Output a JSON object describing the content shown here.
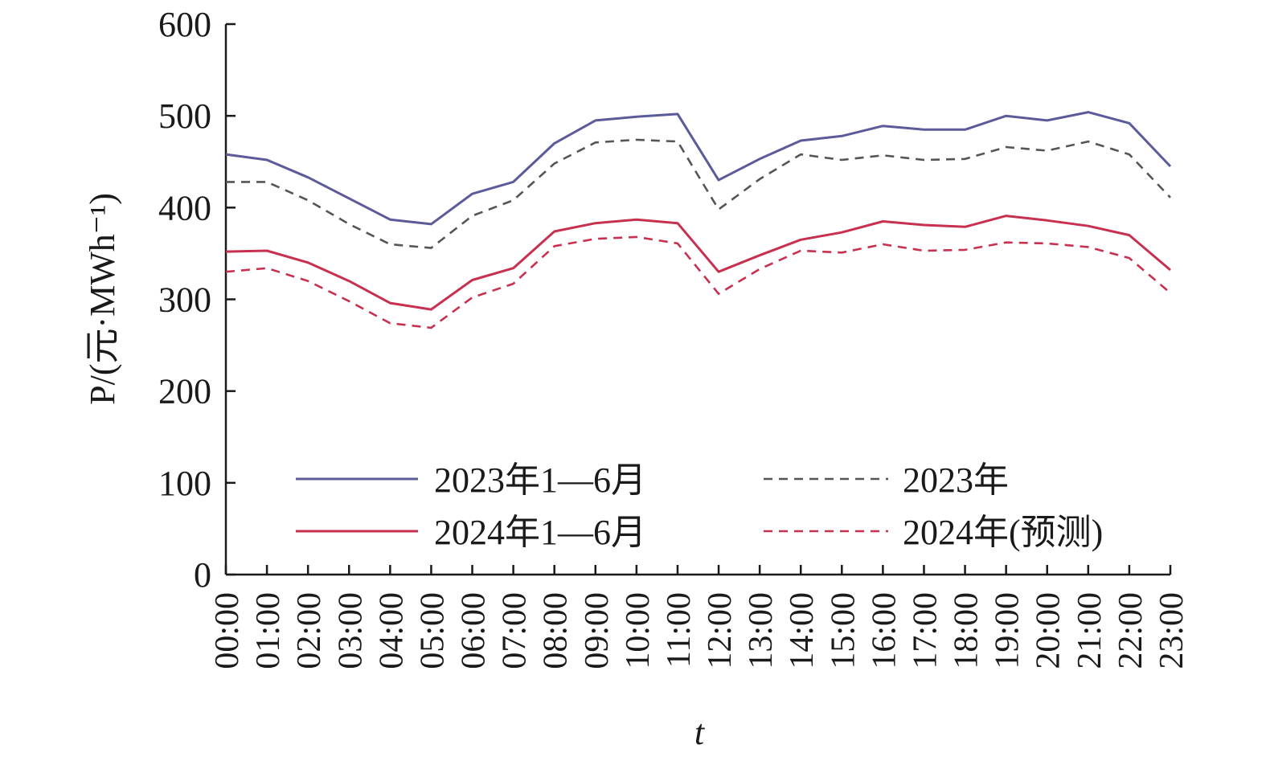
{
  "chart_data": {
    "type": "line",
    "xlabel": "t",
    "ylabel": "P/(元·MWh⁻¹)",
    "ylim": [
      0,
      600
    ],
    "yticks": [
      0,
      100,
      200,
      300,
      400,
      500,
      600
    ],
    "grid": false,
    "legend_placement": "bottom-center",
    "categories": [
      "00:00",
      "01:00",
      "02:00",
      "03:00",
      "04:00",
      "05:00",
      "06:00",
      "07:00",
      "08:00",
      "09:00",
      "10:00",
      "11:00",
      "12:00",
      "13:00",
      "14:00",
      "15:00",
      "16:00",
      "17:00",
      "18:00",
      "19:00",
      "20:00",
      "21:00",
      "22:00",
      "23:00"
    ],
    "series": [
      {
        "name": "2023年1—6月",
        "color": "#5b5b9a",
        "dash": "solid",
        "values": [
          458,
          452,
          433,
          410,
          387,
          382,
          415,
          428,
          470,
          495,
          499,
          502,
          430,
          453,
          473,
          478,
          489,
          485,
          485,
          500,
          495,
          504,
          492,
          445
        ]
      },
      {
        "name": "2024年1—6月",
        "color": "#c8304f",
        "dash": "solid",
        "values": [
          352,
          353,
          340,
          320,
          296,
          289,
          321,
          334,
          374,
          383,
          387,
          383,
          330,
          348,
          365,
          373,
          385,
          381,
          379,
          391,
          386,
          380,
          370,
          332
        ]
      },
      {
        "name": "2023年",
        "color": "#555555",
        "dash": "dashed",
        "values": [
          428,
          428,
          408,
          382,
          360,
          356,
          391,
          408,
          448,
          471,
          474,
          472,
          398,
          431,
          458,
          452,
          457,
          452,
          453,
          466,
          462,
          472,
          458,
          411
        ]
      },
      {
        "name": "2024年(预测)",
        "color": "#c8304f",
        "dash": "dashed",
        "values": [
          330,
          334,
          320,
          298,
          274,
          269,
          302,
          317,
          358,
          366,
          368,
          361,
          306,
          333,
          353,
          351,
          360,
          353,
          354,
          362,
          361,
          357,
          345,
          307
        ]
      }
    ]
  }
}
